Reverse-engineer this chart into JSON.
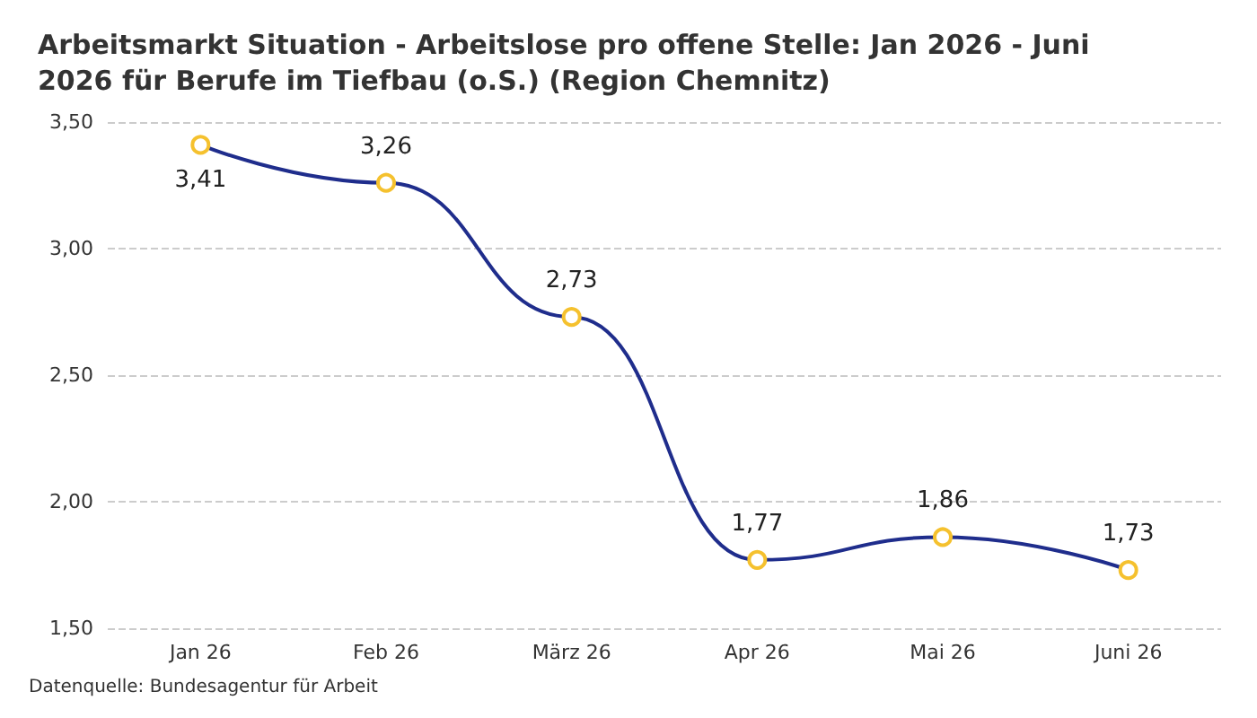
{
  "chart_data": {
    "type": "line",
    "title": "Arbeitsmarkt Situation - Arbeitslose pro offene Stelle: Jan 2026 - Juni 2026 für Berufe im Tiefbau (o.S.) (Region Chemnitz)",
    "categories": [
      "Jan 26",
      "Feb 26",
      "März 26",
      "Apr 26",
      "Mai 26",
      "Juni 26"
    ],
    "series": [
      {
        "color": "#1f2d8c",
        "colors": [
          "#f5c12e",
          "#f5c12e",
          "#f5c12e",
          "#f5c12e",
          "#f5c12e",
          "#f5c12e"
        ],
        "values": [
          3.41,
          3.26,
          2.73,
          1.77,
          1.86,
          1.73
        ],
        "value_labels": [
          "3,41",
          "3,26",
          "2,73",
          "1,77",
          "1,86",
          "1,73"
        ]
      }
    ],
    "ylim": [
      1.5,
      3.5
    ],
    "yticks": [
      {
        "value": 1.5,
        "label": "1,50"
      },
      {
        "value": 2,
        "label": "2,00"
      },
      {
        "value": 2.5,
        "label": "2,50"
      },
      {
        "value": 3,
        "label": "3,00"
      },
      {
        "value": 3.5,
        "label": "3,50"
      }
    ],
    "grid": "y",
    "marker": "circle",
    "line_style": "solid",
    "annotations": [
      "Datenquelle: Bundesagentur für Arbeit"
    ]
  }
}
